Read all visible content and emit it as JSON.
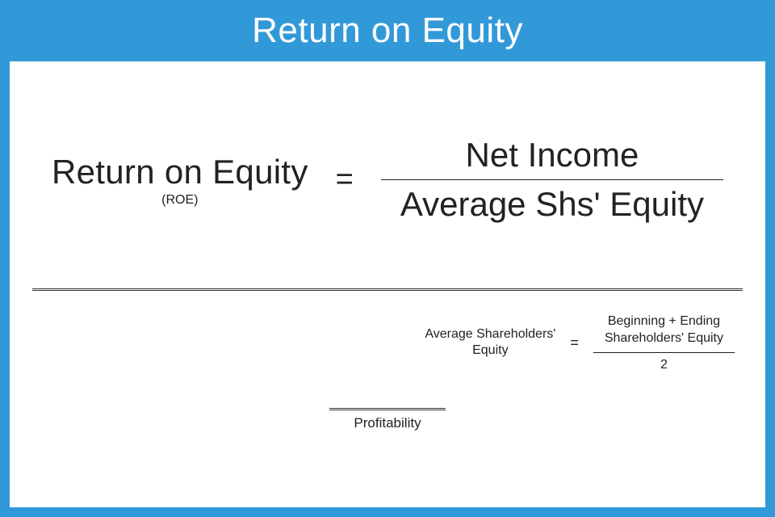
{
  "colors": {
    "page_bg": "#3299d9",
    "panel_bg": "#ffffff",
    "text": "#222222",
    "divider": "#333333"
  },
  "header": {
    "title": "Return on Equity"
  },
  "main_formula": {
    "lhs_main": "Return on Equity",
    "lhs_sub": "(ROE)",
    "equals": "=",
    "numerator": "Net Income",
    "denominator": "Average Shs' Equity"
  },
  "sub_formula": {
    "lhs_line1": "Average Shareholders'",
    "lhs_line2": "Equity",
    "equals": "=",
    "num_line1": "Beginning + Ending",
    "num_line2": "Shareholders' Equity",
    "denominator": "2"
  },
  "category": {
    "label": "Profitability"
  }
}
